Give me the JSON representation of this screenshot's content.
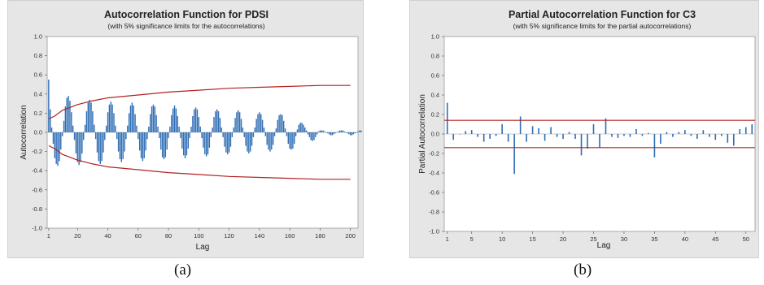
{
  "charts": [
    {
      "id": "a",
      "caption": "(a)",
      "chart_data": {
        "type": "bar",
        "title": "Autocorrelation Function for PDSI",
        "subtitle": "(with 5% significance limits for the autocorrelations)",
        "xlabel": "Lag",
        "ylabel": "Autocorrelation",
        "xlim": [
          0,
          205
        ],
        "ylim": [
          -1.0,
          1.0
        ],
        "xticks": [
          1,
          20,
          40,
          60,
          80,
          100,
          120,
          140,
          160,
          180,
          200
        ],
        "xtick_labels": [
          "1",
          "20",
          "40",
          "60",
          "80",
          "100",
          "120",
          "140",
          "160",
          "180",
          "200"
        ],
        "yticks": [
          -1.0,
          -0.8,
          -0.6,
          -0.4,
          -0.2,
          0.0,
          0.2,
          0.4,
          0.6,
          0.8,
          1.0
        ],
        "ytick_labels": [
          "-1.0",
          "-0.8",
          "-0.6",
          "-0.4",
          "-0.2",
          "0.0",
          "0.2",
          "0.4",
          "0.6",
          "0.8",
          "1.0"
        ],
        "bar_color": "#2e6db4",
        "limit_color": "#b22222",
        "grid": false,
        "series": [
          {
            "lag_start": 1,
            "values": [
              0.55,
              0.24,
              0.05,
              -0.12,
              -0.27,
              -0.33,
              -0.35,
              -0.3,
              -0.18,
              -0.04,
              0.12,
              0.27,
              0.36,
              0.38,
              0.33,
              0.21,
              0.07,
              -0.08,
              -0.22,
              -0.31,
              -0.34,
              -0.31,
              -0.22,
              -0.08,
              0.08,
              0.22,
              0.31,
              0.34,
              0.31,
              0.22,
              0.08,
              -0.07,
              -0.21,
              -0.3,
              -0.33,
              -0.3,
              -0.21,
              -0.08,
              0.07,
              0.21,
              0.29,
              0.32,
              0.29,
              0.2,
              0.07,
              -0.07,
              -0.2,
              -0.28,
              -0.31,
              -0.28,
              -0.2,
              -0.07,
              0.07,
              0.2,
              0.28,
              0.31,
              0.28,
              0.19,
              0.07,
              -0.07,
              -0.19,
              -0.27,
              -0.3,
              -0.27,
              -0.19,
              -0.07,
              0.06,
              0.19,
              0.27,
              0.29,
              0.27,
              0.18,
              0.06,
              -0.06,
              -0.18,
              -0.26,
              -0.28,
              -0.26,
              -0.18,
              -0.06,
              0.06,
              0.18,
              0.25,
              0.28,
              0.25,
              0.17,
              0.06,
              -0.06,
              -0.17,
              -0.24,
              -0.27,
              -0.24,
              -0.17,
              -0.06,
              0.06,
              0.17,
              0.24,
              0.26,
              0.24,
              0.16,
              0.06,
              -0.06,
              -0.16,
              -0.23,
              -0.25,
              -0.23,
              -0.16,
              -0.05,
              0.05,
              0.16,
              0.22,
              0.24,
              0.22,
              0.15,
              0.05,
              -0.05,
              -0.15,
              -0.21,
              -0.23,
              -0.21,
              -0.15,
              -0.05,
              0.05,
              0.15,
              0.21,
              0.23,
              0.21,
              0.14,
              0.05,
              -0.05,
              -0.14,
              -0.2,
              -0.22,
              -0.2,
              -0.14,
              -0.05,
              0.05,
              0.14,
              0.19,
              0.21,
              0.19,
              0.13,
              0.05,
              -0.04,
              -0.13,
              -0.18,
              -0.2,
              -0.18,
              -0.13,
              -0.04,
              0.04,
              0.13,
              0.18,
              0.19,
              0.18,
              0.12,
              0.04,
              -0.04,
              -0.12,
              -0.17,
              -0.18,
              -0.17,
              -0.12,
              -0.04,
              0.03,
              0.08,
              0.1,
              0.1,
              0.08,
              0.05,
              0.02,
              -0.02,
              -0.05,
              -0.08,
              -0.09,
              -0.08,
              -0.05,
              -0.02,
              0.01,
              0.02,
              0.02,
              0.02,
              0.01,
              0.0,
              -0.01,
              -0.02,
              -0.03,
              -0.03,
              -0.02,
              -0.01,
              0.0,
              0.01,
              0.02,
              0.02,
              0.02,
              0.01,
              0.0,
              -0.01,
              -0.02,
              -0.03,
              -0.03,
              -0.02,
              -0.01,
              0.0,
              0.01,
              0.02,
              0.02
            ]
          }
        ],
        "significance_limits": {
          "lags": [
            1,
            5,
            10,
            20,
            30,
            40,
            60,
            80,
            100,
            120,
            140,
            160,
            180,
            200
          ],
          "upper": [
            0.14,
            0.17,
            0.23,
            0.29,
            0.33,
            0.36,
            0.39,
            0.42,
            0.44,
            0.46,
            0.47,
            0.48,
            0.49,
            0.49
          ],
          "lower": [
            -0.14,
            -0.17,
            -0.23,
            -0.29,
            -0.33,
            -0.36,
            -0.39,
            -0.42,
            -0.44,
            -0.46,
            -0.47,
            -0.48,
            -0.49,
            -0.49
          ]
        }
      }
    },
    {
      "id": "b",
      "caption": "(b)",
      "chart_data": {
        "type": "bar",
        "title": "Partial Autocorrelation Function for C3",
        "subtitle": "(with 5% significance limits for the partial autocorrelations)",
        "xlabel": "Lag",
        "ylabel": "Partial Autocorrelation",
        "xlim": [
          0.5,
          51.5
        ],
        "ylim": [
          -1.0,
          1.0
        ],
        "xticks": [
          1,
          5,
          10,
          15,
          20,
          25,
          30,
          35,
          40,
          45,
          50
        ],
        "xtick_labels": [
          "1",
          "5",
          "10",
          "15",
          "20",
          "25",
          "30",
          "35",
          "40",
          "45",
          "50"
        ],
        "yticks": [
          -1.0,
          -0.8,
          -0.6,
          -0.4,
          -0.2,
          0.0,
          0.2,
          0.4,
          0.6,
          0.8,
          1.0
        ],
        "ytick_labels": [
          "-1.0",
          "-0.8",
          "-0.6",
          "-0.4",
          "-0.2",
          "0.0",
          "0.2",
          "0.4",
          "0.6",
          "0.8",
          "1.0"
        ],
        "bar_color": "#2e6db4",
        "limit_color": "#b22222",
        "grid": false,
        "series": [
          {
            "lag_start": 1,
            "values": [
              0.32,
              -0.06,
              0.0,
              0.03,
              0.04,
              -0.03,
              -0.08,
              -0.05,
              -0.02,
              0.1,
              -0.08,
              -0.41,
              0.18,
              -0.08,
              0.08,
              0.06,
              -0.07,
              0.07,
              -0.03,
              -0.05,
              0.02,
              -0.05,
              -0.22,
              -0.15,
              0.1,
              -0.14,
              0.16,
              -0.03,
              -0.04,
              -0.02,
              -0.03,
              0.05,
              -0.02,
              0.01,
              -0.24,
              -0.1,
              0.02,
              -0.03,
              0.02,
              0.04,
              -0.02,
              -0.05,
              0.04,
              -0.03,
              -0.06,
              -0.02,
              -0.09,
              -0.12,
              0.05,
              0.07,
              0.1
            ]
          }
        ],
        "significance_limits": {
          "upper": 0.14,
          "lower": -0.14
        }
      }
    }
  ]
}
